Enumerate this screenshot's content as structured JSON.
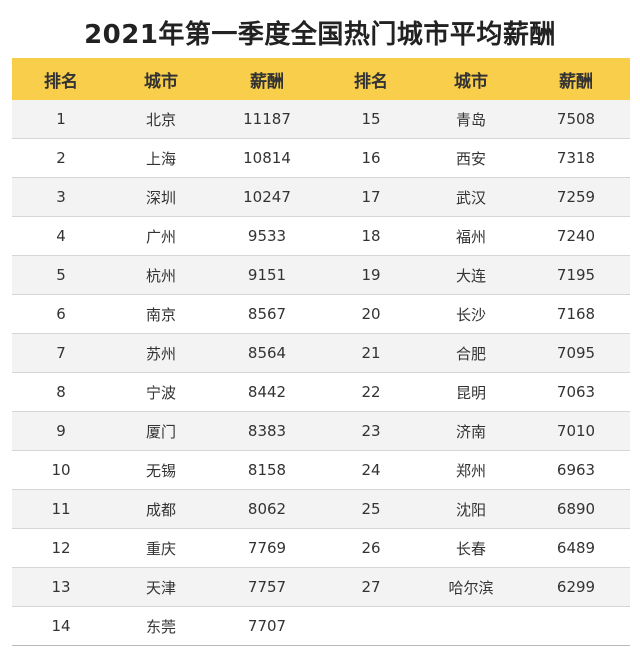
{
  "title": "2021年第一季度全国热门城市平均薪酬",
  "headers": [
    "排名",
    "城市",
    "薪酬",
    "排名",
    "城市",
    "薪酬"
  ],
  "rows": [
    {
      "rank_a": "1",
      "city_a": "北京",
      "salary_a": "11187",
      "rank_b": "15",
      "city_b": "青岛",
      "salary_b": "7508"
    },
    {
      "rank_a": "2",
      "city_a": "上海",
      "salary_a": "10814",
      "rank_b": "16",
      "city_b": "西安",
      "salary_b": "7318"
    },
    {
      "rank_a": "3",
      "city_a": "深圳",
      "salary_a": "10247",
      "rank_b": "17",
      "city_b": "武汉",
      "salary_b": "7259"
    },
    {
      "rank_a": "4",
      "city_a": "广州",
      "salary_a": "9533",
      "rank_b": "18",
      "city_b": "福州",
      "salary_b": "7240"
    },
    {
      "rank_a": "5",
      "city_a": "杭州",
      "salary_a": "9151",
      "rank_b": "19",
      "city_b": "大连",
      "salary_b": "7195"
    },
    {
      "rank_a": "6",
      "city_a": "南京",
      "salary_a": "8567",
      "rank_b": "20",
      "city_b": "长沙",
      "salary_b": "7168"
    },
    {
      "rank_a": "7",
      "city_a": "苏州",
      "salary_a": "8564",
      "rank_b": "21",
      "city_b": "合肥",
      "salary_b": "7095"
    },
    {
      "rank_a": "8",
      "city_a": "宁波",
      "salary_a": "8442",
      "rank_b": "22",
      "city_b": "昆明",
      "salary_b": "7063"
    },
    {
      "rank_a": "9",
      "city_a": "厦门",
      "salary_a": "8383",
      "rank_b": "23",
      "city_b": "济南",
      "salary_b": "7010"
    },
    {
      "rank_a": "10",
      "city_a": "无锡",
      "salary_a": "8158",
      "rank_b": "24",
      "city_b": "郑州",
      "salary_b": "6963"
    },
    {
      "rank_a": "11",
      "city_a": "成都",
      "salary_a": "8062",
      "rank_b": "25",
      "city_b": "沈阳",
      "salary_b": "6890"
    },
    {
      "rank_a": "12",
      "city_a": "重庆",
      "salary_a": "7769",
      "rank_b": "26",
      "city_b": "长春",
      "salary_b": "6489"
    },
    {
      "rank_a": "13",
      "city_a": "天津",
      "salary_a": "7757",
      "rank_b": "27",
      "city_b": "哈尔滨",
      "salary_b": "6299"
    },
    {
      "rank_a": "14",
      "city_a": "东莞",
      "salary_a": "7707",
      "rank_b": "",
      "city_b": "",
      "salary_b": ""
    }
  ],
  "colors": {
    "header_bg": "#f8ce4a",
    "stripe": "#f3f3f3",
    "border": "#d6d6d6"
  }
}
